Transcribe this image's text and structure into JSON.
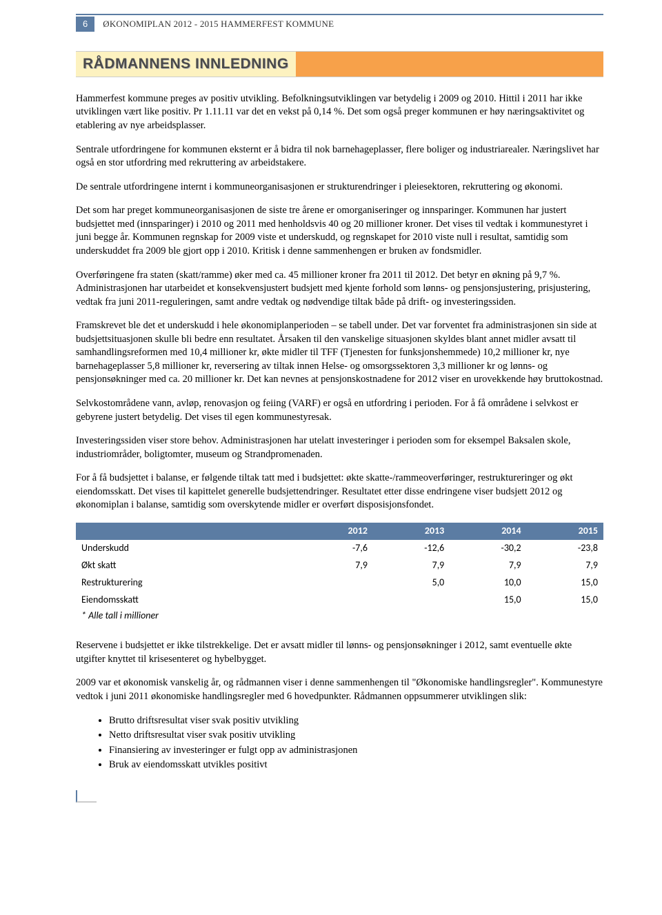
{
  "header": {
    "page_number": "6",
    "doc_title": "ØKONOMIPLAN 2012 - 2015 HAMMERFEST KOMMUNE"
  },
  "title": "RÅDMANNENS INNLEDNING",
  "paragraphs": {
    "p1": "Hammerfest kommune preges av positiv utvikling. Befolkningsutviklingen var betydelig i 2009 og 2010. Hittil i 2011 har ikke utviklingen vært like positiv. Pr 1.11.11 var det en vekst på 0,14 %. Det som også preger kommunen er høy næringsaktivitet og etablering av nye arbeidsplasser.",
    "p2": "Sentrale utfordringene for kommunen eksternt er å bidra til nok barnehageplasser, flere boliger og industriarealer. Næringslivet har også en stor utfordring med rekruttering av arbeidstakere.",
    "p3": "De sentrale utfordringene internt i kommuneorganisasjonen er strukturendringer i pleiesektoren, rekruttering og økonomi.",
    "p4": "Det som har preget kommuneorganisasjonen de siste tre årene er omorganiseringer og innsparinger. Kommunen har justert budsjettet med (innsparinger) i 2010 og 2011 med henholdsvis 40 og 20 millioner kroner. Det vises til vedtak i kommunestyret i juni begge år. Kommunen regnskap for 2009 viste et underskudd, og regnskapet for 2010 viste null i resultat, samtidig som underskuddet fra 2009 ble gjort opp i 2010. Kritisk i denne sammenhengen er bruken av fondsmidler.",
    "p5": "Overføringene fra staten (skatt/ramme) øker med ca. 45 millioner kroner fra 2011 til 2012. Det betyr en økning på 9,7 %. Administrasjonen har utarbeidet et konsekvensjustert budsjett med kjente forhold som lønns- og pensjonsjustering, prisjustering, vedtak fra juni 2011-reguleringen, samt andre vedtak og nødvendige tiltak både på drift- og investeringssiden.",
    "p6": "Framskrevet ble det et underskudd i hele økonomiplanperioden – se tabell under. Det var forventet fra administrasjonen sin side at budsjettsituasjonen skulle bli bedre enn resultatet. Årsaken til den vanskelige situasjonen skyldes blant annet midler avsatt til samhandlingsreformen med 10,4 millioner kr, økte midler til TFF (Tjenesten for funksjonshemmede) 10,2 millioner kr, nye barnehageplasser 5,8 millioner kr, reversering av tiltak innen Helse- og omsorgssektoren 3,3 millioner kr og lønns- og pensjonsøkninger med ca. 20 millioner kr. Det kan nevnes at pensjonskostnadene for 2012 viser en urovekkende høy bruttokostnad.",
    "p7": "Selvkostområdene vann, avløp, renovasjon og feiing (VARF) er også en utfordring i perioden. For å få områdene i selvkost er gebyrene justert betydelig. Det vises til egen kommunestyresak.",
    "p8": "Investeringssiden viser store behov. Administrasjonen har utelatt investeringer i perioden som for eksempel Baksalen skole, industriområder, boligtomter, museum og Strandpromenaden.",
    "p9": "For å få budsjettet i balanse, er følgende tiltak tatt med i budsjettet: økte skatte-/rammeoverføringer, restruktureringer og økt eiendomsskatt. Det vises til kapittelet generelle budsjettendringer. Resultatet etter disse endringene viser budsjett 2012 og økonomiplan i balanse, samtidig som overskytende midler er overført disposisjonsfondet.",
    "p10": "Reservene i budsjettet er ikke tilstrekkelige. Det er avsatt midler til lønns- og pensjonsøkninger i 2012, samt eventuelle økte utgifter knyttet til krisesenteret og hybelbygget.",
    "p11": "2009 var et økonomisk vanskelig år, og rådmannen viser i denne sammenhengen til \"Økonomiske handlingsregler\". Kommunestyre vedtok i juni 2011 økonomiske handlingsregler med 6 hovedpunkter. Rådmannen oppsummerer utviklingen slik:"
  },
  "table": {
    "header_bg": "#5b7ca3",
    "header_color": "#ffffff",
    "columns": [
      "",
      "2012",
      "2013",
      "2014",
      "2015"
    ],
    "rows": [
      [
        "Underskudd",
        "-7,6",
        "-12,6",
        "-30,2",
        "-23,8"
      ],
      [
        "Økt skatt",
        "7,9",
        "7,9",
        "7,9",
        "7,9"
      ],
      [
        "Restrukturering",
        "",
        "5,0",
        "10,0",
        "15,0"
      ],
      [
        "Eiendomsskatt",
        "",
        "",
        "15,0",
        "15,0"
      ]
    ],
    "note": "* Alle tall i millioner"
  },
  "bullets": {
    "b1": "Brutto driftsresultat viser svak positiv utvikling",
    "b2": "Netto driftsresultat viser svak positiv utvikling",
    "b3": "Finansiering av investeringer er fulgt opp av administrasjonen",
    "b4": "Bruk av eiendomsskatt utvikles positivt"
  }
}
